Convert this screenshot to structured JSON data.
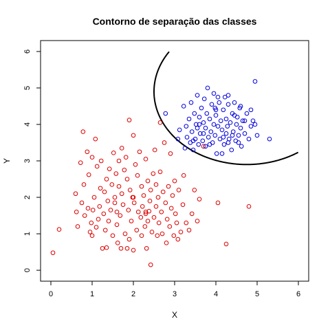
{
  "chart_data": {
    "type": "scatter",
    "title": "Contorno de separação das classes",
    "xlabel": "X",
    "ylabel": "Y",
    "xlim": [
      -0.25,
      6.25
    ],
    "ylim": [
      -0.3,
      6.3
    ],
    "x_ticks": [
      0,
      1,
      2,
      3,
      4,
      5,
      6
    ],
    "y_ticks": [
      0,
      1,
      2,
      3,
      4,
      5,
      6
    ],
    "grid": false,
    "legend": "none",
    "colors": {
      "red_series": "#dd0000",
      "blue_series": "#0000dd",
      "contour": "#000000"
    },
    "series": [
      {
        "marker": "open-circle",
        "color": "#dd0000",
        "points": [
          [
            0.05,
            0.48
          ],
          [
            0.2,
            1.12
          ],
          [
            0.6,
            2.1
          ],
          [
            0.62,
            1.6
          ],
          [
            0.65,
            1.2
          ],
          [
            0.72,
            2.95
          ],
          [
            0.75,
            1.85
          ],
          [
            0.78,
            3.8
          ],
          [
            0.8,
            2.35
          ],
          [
            0.82,
            1.5
          ],
          [
            0.88,
            3.25
          ],
          [
            0.9,
            1.7
          ],
          [
            0.92,
            2.62
          ],
          [
            0.95,
            1.05
          ],
          [
            0.98,
            1.3
          ],
          [
            1.0,
            0.95
          ],
          [
            1.0,
            3.1
          ],
          [
            1.02,
            1.65
          ],
          [
            1.05,
            2.0
          ],
          [
            1.08,
            3.6
          ],
          [
            1.1,
            1.18
          ],
          [
            1.12,
            2.85
          ],
          [
            1.15,
            1.4
          ],
          [
            1.18,
            1.75
          ],
          [
            1.2,
            2.25
          ],
          [
            1.22,
            3.0
          ],
          [
            1.25,
            0.6
          ],
          [
            1.28,
            1.55
          ],
          [
            1.3,
            2.15
          ],
          [
            1.32,
            1.1
          ],
          [
            1.35,
            2.5
          ],
          [
            1.35,
            0.62
          ],
          [
            1.38,
            1.9
          ],
          [
            1.4,
            1.35
          ],
          [
            1.42,
            2.78
          ],
          [
            1.45,
            1.65
          ],
          [
            1.48,
            2.35
          ],
          [
            1.5,
            0.95
          ],
          [
            1.52,
            3.22
          ],
          [
            1.55,
            1.85
          ],
          [
            1.55,
            2.0
          ],
          [
            1.58,
            2.65
          ],
          [
            1.6,
            1.25
          ],
          [
            1.62,
            0.75
          ],
          [
            1.65,
            3.0
          ],
          [
            1.65,
            2.3
          ],
          [
            1.68,
            1.5
          ],
          [
            1.7,
            0.6
          ],
          [
            1.72,
            3.35
          ],
          [
            1.72,
            2.1
          ],
          [
            1.75,
            1.8
          ],
          [
            1.78,
            2.75
          ],
          [
            1.8,
            1.0
          ],
          [
            1.82,
            3.1
          ],
          [
            1.85,
            0.6
          ],
          [
            1.85,
            2.5
          ],
          [
            1.88,
            1.65
          ],
          [
            1.9,
            4.12
          ],
          [
            1.9,
            0.85
          ],
          [
            1.92,
            2.2
          ],
          [
            1.95,
            1.35
          ],
          [
            1.98,
            2.0
          ],
          [
            2.0,
            3.7
          ],
          [
            2.0,
            0.55
          ],
          [
            2.02,
            1.85
          ],
          [
            2.05,
            2.9
          ],
          [
            2.08,
            1.1
          ],
          [
            2.1,
            2.6
          ],
          [
            2.12,
            1.6
          ],
          [
            2.15,
            3.25
          ],
          [
            2.18,
            1.45
          ],
          [
            2.2,
            2.3
          ],
          [
            2.2,
            0.95
          ],
          [
            2.22,
            1.75
          ],
          [
            2.25,
            2.05
          ],
          [
            2.28,
            1.2
          ],
          [
            2.3,
            3.05
          ],
          [
            2.3,
            1.55
          ],
          [
            2.32,
            0.6
          ],
          [
            2.35,
            2.45
          ],
          [
            2.35,
            1.35
          ],
          [
            2.38,
            1.62
          ],
          [
            2.4,
            1.9
          ],
          [
            2.42,
            0.15
          ],
          [
            2.42,
            2.2
          ],
          [
            2.45,
            1.05
          ],
          [
            2.48,
            2.65
          ],
          [
            2.5,
            1.45
          ],
          [
            2.52,
            3.3
          ],
          [
            2.55,
            2.35
          ],
          [
            2.55,
            1.75
          ],
          [
            2.58,
            0.95
          ],
          [
            2.6,
            2.0
          ],
          [
            2.62,
            1.3
          ],
          [
            2.65,
            4.05
          ],
          [
            2.65,
            2.7
          ],
          [
            2.68,
            1.6
          ],
          [
            2.7,
            1.0
          ],
          [
            2.72,
            2.15
          ],
          [
            2.75,
            3.5
          ],
          [
            2.78,
            1.85
          ],
          [
            2.8,
            0.75
          ],
          [
            2.82,
            1.4
          ],
          [
            2.85,
            2.3
          ],
          [
            2.88,
            1.2
          ],
          [
            2.9,
            3.2
          ],
          [
            2.92,
            1.7
          ],
          [
            2.95,
            2.05
          ],
          [
            2.98,
            0.95
          ],
          [
            3.0,
            2.45
          ],
          [
            3.02,
            1.55
          ],
          [
            3.05,
            1.3
          ],
          [
            3.08,
            0.85
          ],
          [
            3.1,
            2.2
          ],
          [
            3.15,
            1.05
          ],
          [
            3.2,
            1.8
          ],
          [
            3.22,
            2.6
          ],
          [
            3.28,
            1.3
          ],
          [
            3.35,
            1.1
          ],
          [
            3.42,
            1.55
          ],
          [
            3.48,
            2.2
          ],
          [
            3.55,
            1.35
          ],
          [
            3.6,
            1.95
          ],
          [
            3.7,
            3.4
          ],
          [
            4.05,
            1.85
          ],
          [
            4.25,
            0.72
          ],
          [
            4.8,
            1.75
          ],
          [
            2.3,
            1.6
          ],
          [
            1.6,
            1.6
          ],
          [
            2.0,
            2.0
          ]
        ]
      },
      {
        "marker": "open-circle",
        "color": "#0000dd",
        "points": [
          [
            2.78,
            4.3
          ],
          [
            3.08,
            3.6
          ],
          [
            3.12,
            3.85
          ],
          [
            3.22,
            4.5
          ],
          [
            3.25,
            3.35
          ],
          [
            3.28,
            3.95
          ],
          [
            3.3,
            3.65
          ],
          [
            3.35,
            4.15
          ],
          [
            3.38,
            3.5
          ],
          [
            3.4,
            4.6
          ],
          [
            3.42,
            3.8
          ],
          [
            3.45,
            3.3
          ],
          [
            3.48,
            4.3
          ],
          [
            3.5,
            3.6
          ],
          [
            3.52,
            4.0
          ],
          [
            3.55,
            4.8
          ],
          [
            3.58,
            3.45
          ],
          [
            3.6,
            4.2
          ],
          [
            3.62,
            3.75
          ],
          [
            3.65,
            4.45
          ],
          [
            3.68,
            3.55
          ],
          [
            3.7,
            4.05
          ],
          [
            3.72,
            4.7
          ],
          [
            3.75,
            3.9
          ],
          [
            3.75,
            3.4
          ],
          [
            3.78,
            4.3
          ],
          [
            3.8,
            5.0
          ],
          [
            3.82,
            3.65
          ],
          [
            3.85,
            4.15
          ],
          [
            3.88,
            3.8
          ],
          [
            3.9,
            4.55
          ],
          [
            3.92,
            3.5
          ],
          [
            3.95,
            4.0
          ],
          [
            3.95,
            4.85
          ],
          [
            3.98,
            3.7
          ],
          [
            4.0,
            4.25
          ],
          [
            4.02,
            3.2
          ],
          [
            4.05,
            3.95
          ],
          [
            4.08,
            4.6
          ],
          [
            4.1,
            3.6
          ],
          [
            4.12,
            4.1
          ],
          [
            4.15,
            3.85
          ],
          [
            4.18,
            4.4
          ],
          [
            4.2,
            3.45
          ],
          [
            4.22,
            4.75
          ],
          [
            4.25,
            3.75
          ],
          [
            4.25,
            4.15
          ],
          [
            4.28,
            3.95
          ],
          [
            4.3,
            4.55
          ],
          [
            4.32,
            3.6
          ],
          [
            4.35,
            4.05
          ],
          [
            4.38,
            3.3
          ],
          [
            4.4,
            4.3
          ],
          [
            4.42,
            3.8
          ],
          [
            4.45,
            4.6
          ],
          [
            4.48,
            3.55
          ],
          [
            4.5,
            4.0
          ],
          [
            4.52,
            4.2
          ],
          [
            4.55,
            3.7
          ],
          [
            4.58,
            4.45
          ],
          [
            4.6,
            3.9
          ],
          [
            4.62,
            3.4
          ],
          [
            4.65,
            4.1
          ],
          [
            4.7,
            3.75
          ],
          [
            4.75,
            4.3
          ],
          [
            4.8,
            3.6
          ],
          [
            4.85,
            3.95
          ],
          [
            4.9,
            4.1
          ],
          [
            4.95,
            4.0
          ],
          [
            5.0,
            3.7
          ],
          [
            4.95,
            5.18
          ],
          [
            5.3,
            3.6
          ],
          [
            4.55,
            3.5
          ],
          [
            4.0,
            4.4
          ],
          [
            3.6,
            4.0
          ],
          [
            4.3,
            4.8
          ],
          [
            4.15,
            3.2
          ],
          [
            4.7,
            4.1
          ],
          [
            3.85,
            3.45
          ],
          [
            4.45,
            4.25
          ],
          [
            3.98,
            4.45
          ],
          [
            4.18,
            3.65
          ],
          [
            4.4,
            3.7
          ],
          [
            3.7,
            3.75
          ],
          [
            4.6,
            4.5
          ],
          [
            3.55,
            3.9
          ],
          [
            4.85,
            4.4
          ],
          [
            4.05,
            4.75
          ],
          [
            3.45,
            3.55
          ],
          [
            4.3,
            3.5
          ]
        ]
      }
    ],
    "contour": {
      "type": "arc",
      "center": [
        4.75,
        4.9
      ],
      "radius_x": 2.25,
      "radius_y": 2.0,
      "x_range": [
        2.5,
        6.0
      ],
      "y_range": [
        2.9,
        6.0
      ]
    }
  }
}
